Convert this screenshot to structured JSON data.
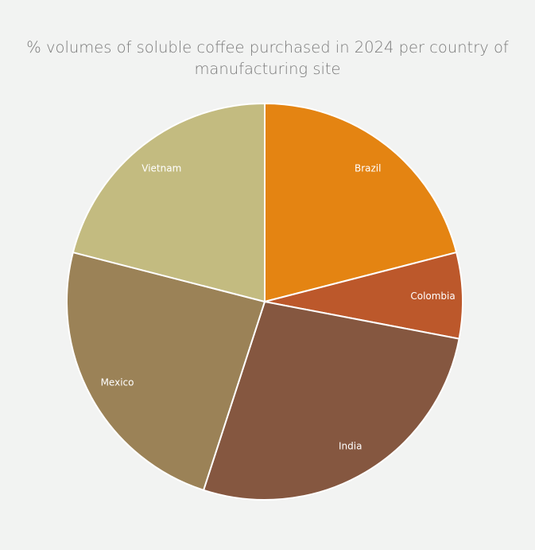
{
  "chart_data": {
    "type": "pie",
    "title": "% volumes of soluble coffee purchased in 2024 per country of manufacturing site",
    "categories": [
      "Brazil",
      "Colombia",
      "India",
      "Mexico",
      "Vietnam"
    ],
    "values": [
      21,
      7,
      27,
      24,
      21
    ],
    "colors": [
      "#e48412",
      "#bc582b",
      "#855740",
      "#9b8257",
      "#c3bb80"
    ]
  }
}
